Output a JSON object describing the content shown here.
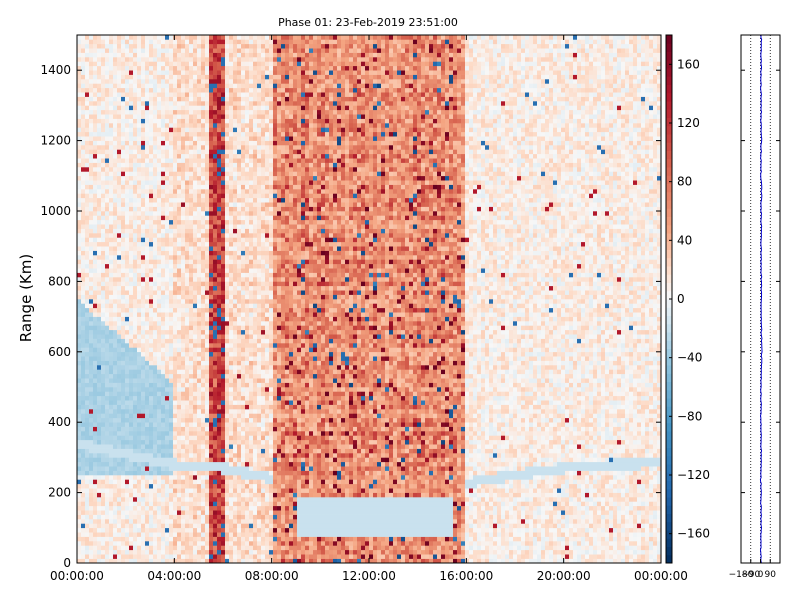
{
  "chart_data": [
    {
      "type": "heatmap",
      "title": "Phase 01: 23-Feb-2019 23:51:00",
      "xlabel": "",
      "ylabel": "Range (Km)",
      "x_ticks": [
        "00:00:00",
        "04:00:00",
        "08:00:00",
        "12:00:00",
        "16:00:00",
        "20:00:00",
        "00:00:00"
      ],
      "x_range_hours": [
        0,
        24
      ],
      "y_ticks": [
        0,
        200,
        400,
        600,
        800,
        1000,
        1200,
        1400
      ],
      "ylim": [
        0,
        1500
      ],
      "colorscale": "diverging red-white-blue",
      "colorbar": {
        "ticks": [
          160,
          120,
          80,
          40,
          0,
          -40,
          -80,
          -120,
          -160
        ],
        "range": [
          -180,
          180
        ],
        "colors": {
          "max": "#67001f",
          "high": "#d6604d",
          "mid": "#f7f7f7",
          "low": "#4393c3",
          "min": "#053061"
        }
      },
      "features": {
        "strong_phase_band_hours": [
          8.0,
          15.9
        ],
        "vertical_lines_hours": [
          5.6,
          5.9
        ],
        "low_range_boundary_km": {
          "x_hours": [
            0,
            4,
            6,
            8,
            10,
            12,
            14,
            15.8,
            18,
            20,
            22,
            24
          ],
          "y_km": [
            340,
            280,
            270,
            240,
            215,
            200,
            205,
            225,
            250,
            270,
            280,
            285
          ]
        }
      },
      "grid": false
    },
    {
      "type": "line",
      "title": "",
      "xlabel": "",
      "ylabel": "",
      "x_ticks": [
        "-180",
        "-90",
        "0",
        "90"
      ],
      "xlim": [
        -180,
        180
      ],
      "ylim": [
        0,
        1500
      ],
      "series": [
        {
          "color": "#0000cc",
          "y_km": [
            0,
            50,
            100,
            150,
            200,
            250,
            300,
            350,
            400,
            450,
            500,
            550,
            600,
            650,
            700,
            750,
            800,
            850,
            900,
            950,
            1000,
            1050,
            1100,
            1150,
            1200,
            1250,
            1300,
            1350,
            1400,
            1450,
            1500
          ],
          "x_deg": [
            5,
            3,
            7,
            4,
            6,
            2,
            8,
            5,
            3,
            6,
            4,
            8,
            12,
            9,
            7,
            5,
            8,
            6,
            4,
            7,
            5,
            9,
            6,
            3,
            8,
            5,
            7,
            4,
            6,
            5,
            7
          ]
        }
      ],
      "vertical_dotted_lines_deg": [
        -90,
        0,
        90
      ],
      "grid": false
    }
  ]
}
